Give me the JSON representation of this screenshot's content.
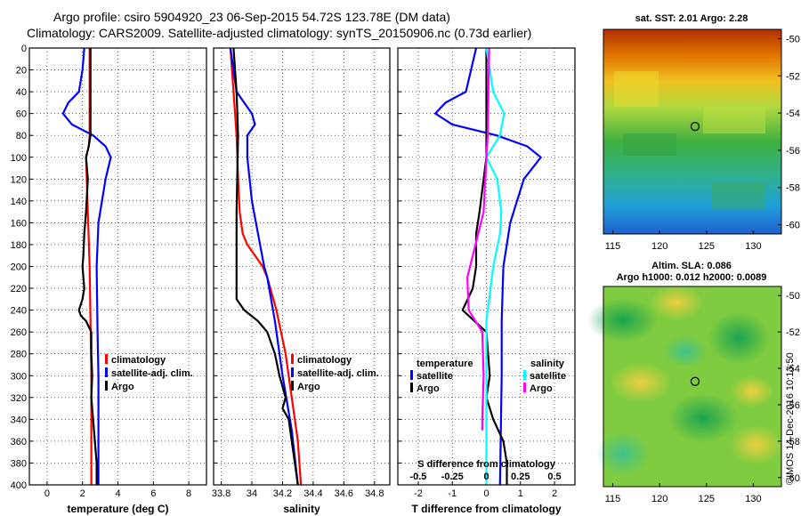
{
  "header": {
    "line1": "Argo profile: csiro 5904920_23 06-Sep-2015 54.72S 123.78E (DM data)",
    "line2": "Climatology: CARS2009. Satellite-adjusted climatology: synTS_20150906.nc (0.73d earlier)"
  },
  "footer": {
    "credit": "©IMOS 14-Dec-2016 10:13:50"
  },
  "colors": {
    "climatology": "#ff0000",
    "satellite": "#0000ff",
    "argo": "#000000",
    "sat_salinity": "#00ffff",
    "argo_salinity": "#ff00ff"
  },
  "chart_data": [
    {
      "type": "line",
      "id": "temperature",
      "xlabel": "temperature (deg C)",
      "ylabel": "",
      "xlim": [
        -1,
        9
      ],
      "ylim": [
        400,
        0
      ],
      "xticks": [
        0,
        2,
        4,
        6,
        8
      ],
      "yticks": [
        0,
        20,
        40,
        60,
        80,
        100,
        120,
        140,
        160,
        180,
        200,
        220,
        240,
        260,
        280,
        300,
        320,
        340,
        360,
        380,
        400
      ],
      "legend": [
        "climatology",
        "satellite-adj. clim.",
        "Argo"
      ],
      "series": [
        {
          "name": "climatology",
          "color": "#ff0000",
          "depth": [
            0,
            80,
            90,
            100,
            150,
            200,
            250,
            300,
            350,
            400
          ],
          "values": [
            2.4,
            2.4,
            2.35,
            2.2,
            2.3,
            2.4,
            2.45,
            2.5,
            2.5,
            2.5
          ]
        },
        {
          "name": "satellite-adj. clim.",
          "color": "#0000ff",
          "depth": [
            0,
            20,
            40,
            50,
            60,
            70,
            80,
            90,
            100,
            120,
            160,
            200,
            260,
            300,
            350,
            400
          ],
          "values": [
            2.1,
            2.0,
            1.8,
            1.2,
            0.9,
            1.4,
            2.6,
            3.3,
            3.6,
            3.3,
            2.9,
            2.8,
            2.85,
            2.9,
            2.9,
            2.9
          ]
        },
        {
          "name": "Argo",
          "color": "#000000",
          "depth": [
            0,
            50,
            80,
            90,
            100,
            120,
            150,
            170,
            190,
            200,
            220,
            230,
            240,
            245,
            250,
            260,
            280,
            300,
            320,
            340,
            360,
            380,
            400
          ],
          "values": [
            2.45,
            2.45,
            2.45,
            2.35,
            2.2,
            2.3,
            2.2,
            2.1,
            2.05,
            2.0,
            2.1,
            2.0,
            1.8,
            1.9,
            2.2,
            2.5,
            2.5,
            2.55,
            2.5,
            2.6,
            2.7,
            2.8,
            2.8
          ]
        }
      ]
    },
    {
      "type": "line",
      "id": "salinity",
      "xlabel": "salinity",
      "ylabel": "",
      "xlim": [
        33.75,
        34.9
      ],
      "ylim": [
        400,
        0
      ],
      "xticks": [
        33.8,
        34,
        34.2,
        34.4,
        34.6,
        34.8
      ],
      "yticks": [
        0,
        20,
        40,
        60,
        80,
        100,
        120,
        140,
        160,
        180,
        200,
        220,
        240,
        260,
        280,
        300,
        320,
        340,
        360,
        380,
        400
      ],
      "legend": [
        "climatology",
        "satellite-adj. clim.",
        "Argo"
      ],
      "series": [
        {
          "name": "climatology",
          "color": "#ff0000",
          "depth": [
            0,
            40,
            80,
            120,
            150,
            170,
            180,
            190,
            200,
            210,
            240,
            280,
            320,
            360,
            400
          ],
          "values": [
            33.86,
            33.88,
            33.9,
            33.91,
            33.92,
            33.94,
            33.97,
            34.02,
            34.07,
            34.1,
            34.16,
            34.22,
            34.26,
            34.3,
            34.32
          ]
        },
        {
          "name": "satellite-adj. clim.",
          "color": "#0000ff",
          "depth": [
            0,
            40,
            60,
            70,
            80,
            100,
            140,
            170,
            200,
            210,
            250,
            300,
            350,
            400
          ],
          "values": [
            33.86,
            33.9,
            34.0,
            34.02,
            33.97,
            33.97,
            34.0,
            34.04,
            34.08,
            34.1,
            34.15,
            34.2,
            34.26,
            34.3
          ]
        },
        {
          "name": "Argo",
          "color": "#000000",
          "depth": [
            0,
            40,
            80,
            150,
            200,
            230,
            240,
            250,
            260,
            280,
            300,
            320,
            330,
            340,
            360,
            380,
            400
          ],
          "values": [
            33.88,
            33.9,
            33.91,
            33.9,
            33.9,
            33.9,
            33.95,
            34.04,
            34.1,
            34.15,
            34.18,
            34.22,
            34.2,
            34.24,
            34.26,
            34.28,
            34.3
          ]
        }
      ]
    },
    {
      "type": "line",
      "id": "differences",
      "xlabel": "T difference from climatology",
      "x2label": "S difference from climatology",
      "xlim": [
        -2.6,
        2.6
      ],
      "ylim": [
        400,
        0
      ],
      "xticks": [
        -2,
        -1,
        0,
        1,
        2
      ],
      "x2ticks": [
        -0.5,
        -0.25,
        0,
        0.25,
        0.5
      ],
      "x2tick_labels": [
        "-0.5",
        "-0.25",
        "0",
        "0.25",
        "0.5"
      ],
      "yticks": [
        0,
        20,
        40,
        60,
        80,
        100,
        120,
        140,
        160,
        180,
        200,
        220,
        240,
        260,
        280,
        300,
        320,
        340,
        360,
        380,
        400
      ],
      "legend_left_title": "temperature",
      "legend_left": [
        "satellite",
        "Argo"
      ],
      "legend_right_title": "salinity",
      "legend_right": [
        "satellite",
        "Argo"
      ],
      "series": [
        {
          "name": "T satellite",
          "color": "#0000ff",
          "depth": [
            0,
            40,
            50,
            60,
            70,
            80,
            90,
            100,
            120,
            160,
            200,
            250,
            300,
            400
          ],
          "values": [
            -0.3,
            -0.6,
            -1.2,
            -1.5,
            -1.0,
            0.3,
            1.2,
            1.6,
            1.1,
            0.7,
            0.5,
            0.45,
            0.45,
            0.4
          ]
        },
        {
          "name": "T Argo",
          "color": "#000000",
          "depth": [
            0,
            80,
            100,
            150,
            170,
            200,
            220,
            240,
            260,
            300,
            320,
            340,
            360,
            380,
            400
          ],
          "values": [
            0.0,
            0.0,
            0.0,
            -0.2,
            -0.3,
            -0.3,
            -0.4,
            -0.7,
            0.0,
            0.1,
            0.0,
            0.2,
            0.5,
            0.6,
            0.6
          ]
        },
        {
          "name": "S satellite",
          "color": "#00ffff",
          "depth": [
            0,
            40,
            60,
            80,
            100,
            120,
            150,
            170,
            200,
            250,
            300,
            400
          ],
          "values": [
            0.0,
            0.05,
            0.13,
            0.1,
            0.0,
            0.08,
            0.11,
            0.1,
            0.05,
            0.0,
            0.0,
            0.0
          ]
        },
        {
          "name": "S Argo",
          "color": "#ff00ff",
          "depth": [
            0,
            80,
            100,
            150,
            170,
            190,
            210,
            240,
            260,
            300,
            340,
            350
          ],
          "values": [
            0.02,
            0.01,
            0.0,
            -0.02,
            -0.06,
            -0.1,
            -0.14,
            -0.13,
            -0.03,
            -0.02,
            -0.03,
            -0.03
          ]
        }
      ]
    },
    {
      "type": "heatmap",
      "id": "sst-map",
      "title": "sat. SST: 2.01 Argo: 2.28",
      "xticks": [
        115,
        120,
        125,
        130
      ],
      "yticks": [
        -50,
        -52,
        -54,
        -56,
        -58,
        -60
      ],
      "xlim": [
        114,
        133
      ],
      "ylim": [
        -60.5,
        -49.5
      ],
      "marker": {
        "lon": 123.78,
        "lat": -54.72
      }
    },
    {
      "type": "heatmap",
      "id": "sla-map",
      "title": "Altim. SLA: 0.086",
      "subtitle": "Argo h1000: 0.012 h2000: 0.0089",
      "xticks": [
        115,
        120,
        125,
        130
      ],
      "yticks": [
        -50,
        -52,
        -54,
        -56,
        -58,
        -60
      ],
      "xlim": [
        114,
        133
      ],
      "ylim": [
        -60.5,
        -49.5
      ],
      "marker": {
        "lon": 123.78,
        "lat": -54.72
      }
    }
  ]
}
